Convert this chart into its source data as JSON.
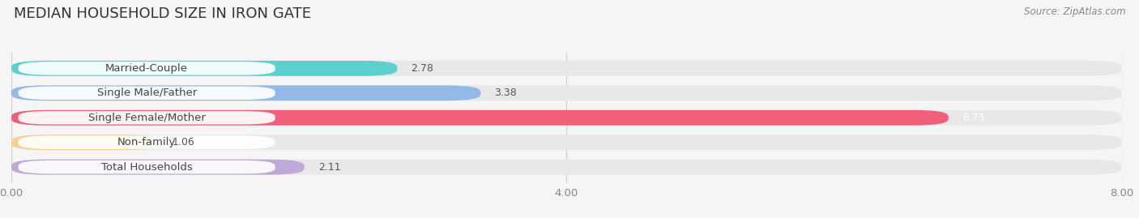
{
  "title": "MEDIAN HOUSEHOLD SIZE IN IRON GATE",
  "source": "Source: ZipAtlas.com",
  "categories": [
    "Married-Couple",
    "Single Male/Father",
    "Single Female/Mother",
    "Non-family",
    "Total Households"
  ],
  "values": [
    2.78,
    3.38,
    6.75,
    1.06,
    2.11
  ],
  "bar_colors": [
    "#5ecfcf",
    "#94b8e8",
    "#f0607a",
    "#f8d090",
    "#c0a8d8"
  ],
  "background_color": "#f5f5f5",
  "bar_bg_color": "#e8e8e8",
  "chart_bg_color": "#ffffff",
  "xlim": [
    0,
    8.0
  ],
  "xticks": [
    0.0,
    4.0,
    8.0
  ],
  "xtick_labels": [
    "0.00",
    "4.00",
    "8.00"
  ],
  "title_fontsize": 13,
  "label_fontsize": 9.5,
  "value_fontsize": 9,
  "source_fontsize": 8.5,
  "value_white": 6.75
}
